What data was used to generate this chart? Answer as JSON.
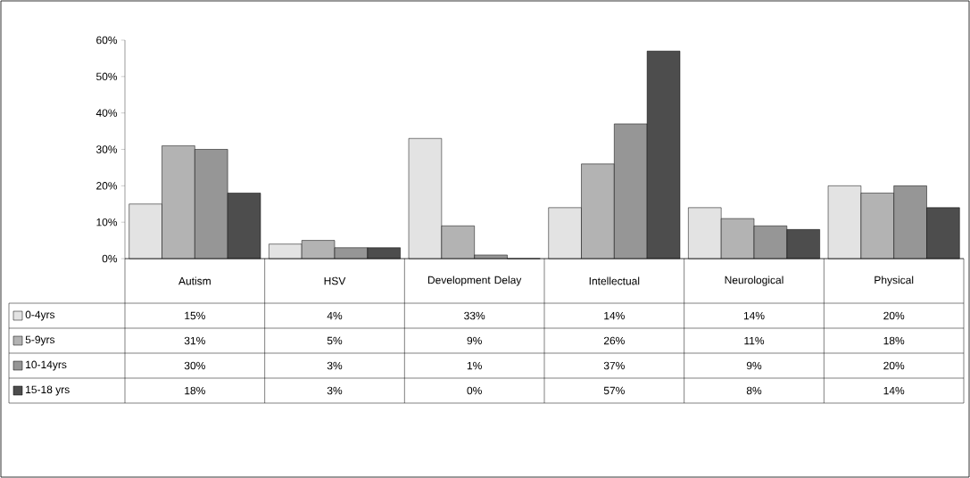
{
  "chart_data": {
    "type": "bar",
    "categories": [
      "Autism",
      "HSV",
      "Development Delay",
      "Intellectual",
      "Neurological",
      "Physical"
    ],
    "series": [
      {
        "name": "0-4yrs",
        "color": "#e3e3e3",
        "values": [
          15,
          4,
          33,
          14,
          14,
          20
        ],
        "value_labels": [
          "15%",
          "4%",
          "33%",
          "14%",
          "14%",
          "20%"
        ]
      },
      {
        "name": "5-9yrs",
        "color": "#b3b3b3",
        "values": [
          31,
          5,
          9,
          26,
          11,
          18
        ],
        "value_labels": [
          "31%",
          "5%",
          "9%",
          "26%",
          "11%",
          "18%"
        ]
      },
      {
        "name": "10-14yrs",
        "color": "#969696",
        "values": [
          30,
          3,
          1,
          37,
          9,
          20
        ],
        "value_labels": [
          "30%",
          "3%",
          "1%",
          "37%",
          "9%",
          "20%"
        ]
      },
      {
        "name": "15-18 yrs",
        "color": "#4d4d4d",
        "values": [
          18,
          3,
          0,
          57,
          8,
          14
        ],
        "value_labels": [
          "18%",
          "3%",
          "0%",
          "57%",
          "8%",
          "14%"
        ]
      }
    ],
    "ylim": [
      0,
      60
    ],
    "yticks": [
      {
        "value": 0,
        "label": "0%"
      },
      {
        "value": 10,
        "label": "10%"
      },
      {
        "value": 20,
        "label": "20%"
      },
      {
        "value": 30,
        "label": "30%"
      },
      {
        "value": 40,
        "label": "40%"
      },
      {
        "value": 50,
        "label": "50%"
      },
      {
        "value": 60,
        "label": "60%"
      }
    ],
    "legend": "bottom",
    "grid": false
  }
}
